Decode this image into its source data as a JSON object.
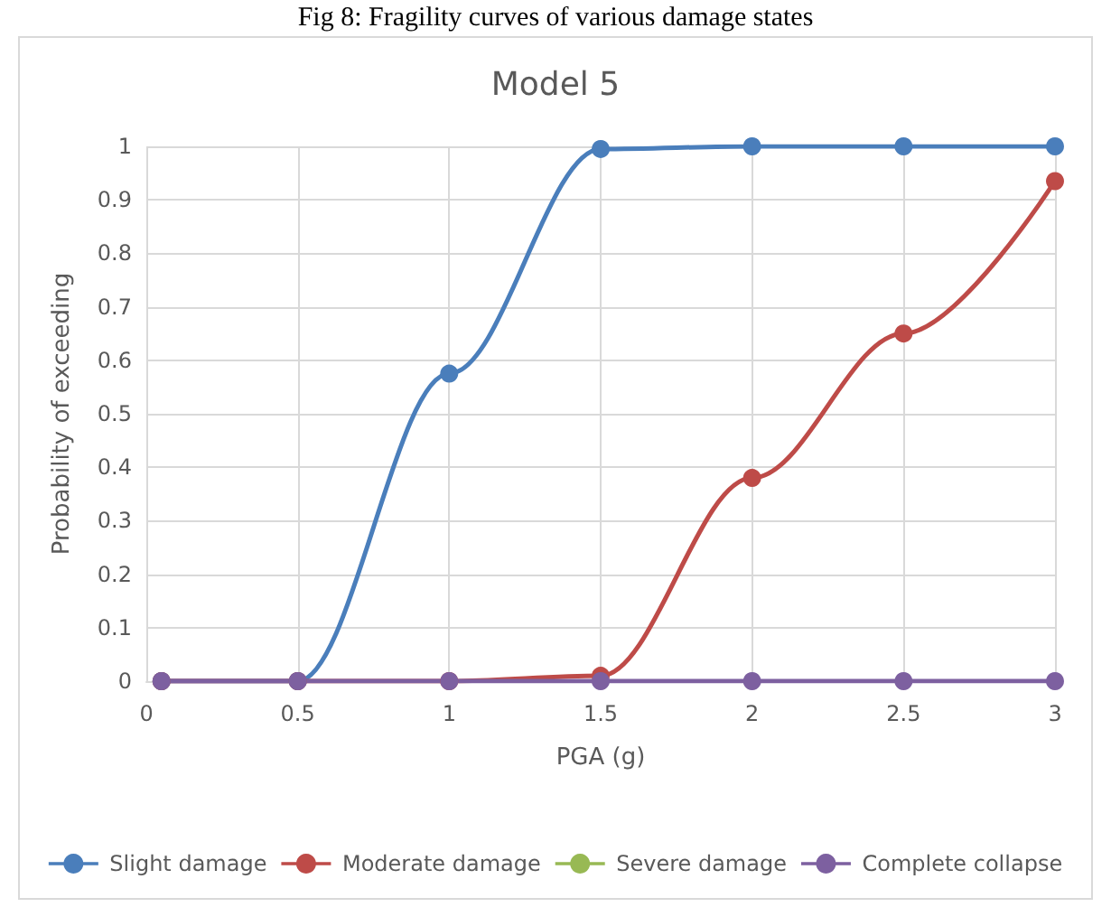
{
  "chart_data": {
    "type": "line",
    "title": "Model 5",
    "xlabel": "PGA (g)",
    "ylabel": "Probability of exceeding",
    "annotations": [
      "Fig 8: Fragility curves of various damage states"
    ],
    "x": [
      0.05,
      0.5,
      1,
      1.5,
      2,
      2.5,
      3
    ],
    "series": [
      {
        "name": "Slight damage",
        "color": "#4a7ebb",
        "values": [
          0,
          0,
          0.575,
          0.995,
          1,
          1,
          1
        ]
      },
      {
        "name": "Moderate damage",
        "color": "#be4b48",
        "values": [
          0,
          0,
          0,
          0.01,
          0.38,
          0.65,
          0.935
        ]
      },
      {
        "name": "Severe damage",
        "color": "#98b954",
        "values": [
          null,
          null,
          null,
          null,
          null,
          null,
          null
        ]
      },
      {
        "name": "Complete collapse",
        "color": "#7d60a0",
        "values": [
          0,
          0,
          0,
          0,
          0,
          0,
          0
        ]
      }
    ],
    "xlim": [
      0,
      3
    ],
    "xticks": [
      0,
      0.5,
      1,
      1.5,
      2,
      2.5,
      3
    ],
    "ylim": [
      0,
      1
    ],
    "yticks": [
      0,
      0.1,
      0.2,
      0.3,
      0.4,
      0.5,
      0.6,
      0.7,
      0.8,
      0.9,
      1
    ],
    "grid": true,
    "legend": "bottom",
    "marker": "circle",
    "line_style": "solid"
  }
}
